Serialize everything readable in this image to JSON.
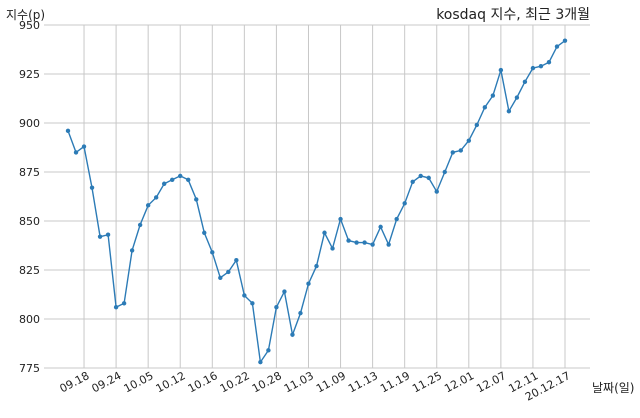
{
  "chart_data": {
    "type": "line",
    "title": "kosdaq 지수, 최근 3개월",
    "xlabel": "날짜(일)",
    "ylabel": "지수(p)",
    "ylim": [
      775,
      950
    ],
    "yticks": [
      775,
      800,
      825,
      850,
      875,
      900,
      925,
      950
    ],
    "grid": true,
    "line_color": "#2c7bb6",
    "xtick_labels": [
      "09.18",
      "09.24",
      "10.05",
      "10.12",
      "10.16",
      "10.22",
      "10.28",
      "11.03",
      "11.09",
      "11.13",
      "11.19",
      "11.25",
      "12.01",
      "12.07",
      "12.11",
      "20.12.17"
    ],
    "xtick_index": [
      2,
      6,
      10,
      14,
      18,
      22,
      26,
      30,
      34,
      38,
      42,
      46,
      50,
      54,
      58,
      62
    ],
    "series": [
      {
        "values": [
          896,
          885,
          888,
          867,
          842,
          843,
          806,
          808,
          835,
          848,
          858,
          862,
          869,
          871,
          873,
          871,
          861,
          844,
          834,
          821,
          824,
          830,
          812,
          808,
          778,
          784,
          806,
          814,
          792,
          803,
          818,
          827,
          844,
          836,
          851,
          840,
          839,
          839,
          838,
          847,
          838,
          851,
          859,
          870,
          873,
          872,
          865,
          875,
          885,
          886,
          891,
          899,
          908,
          914,
          927,
          906,
          913,
          921,
          928,
          929,
          931,
          939,
          942
        ]
      }
    ]
  }
}
